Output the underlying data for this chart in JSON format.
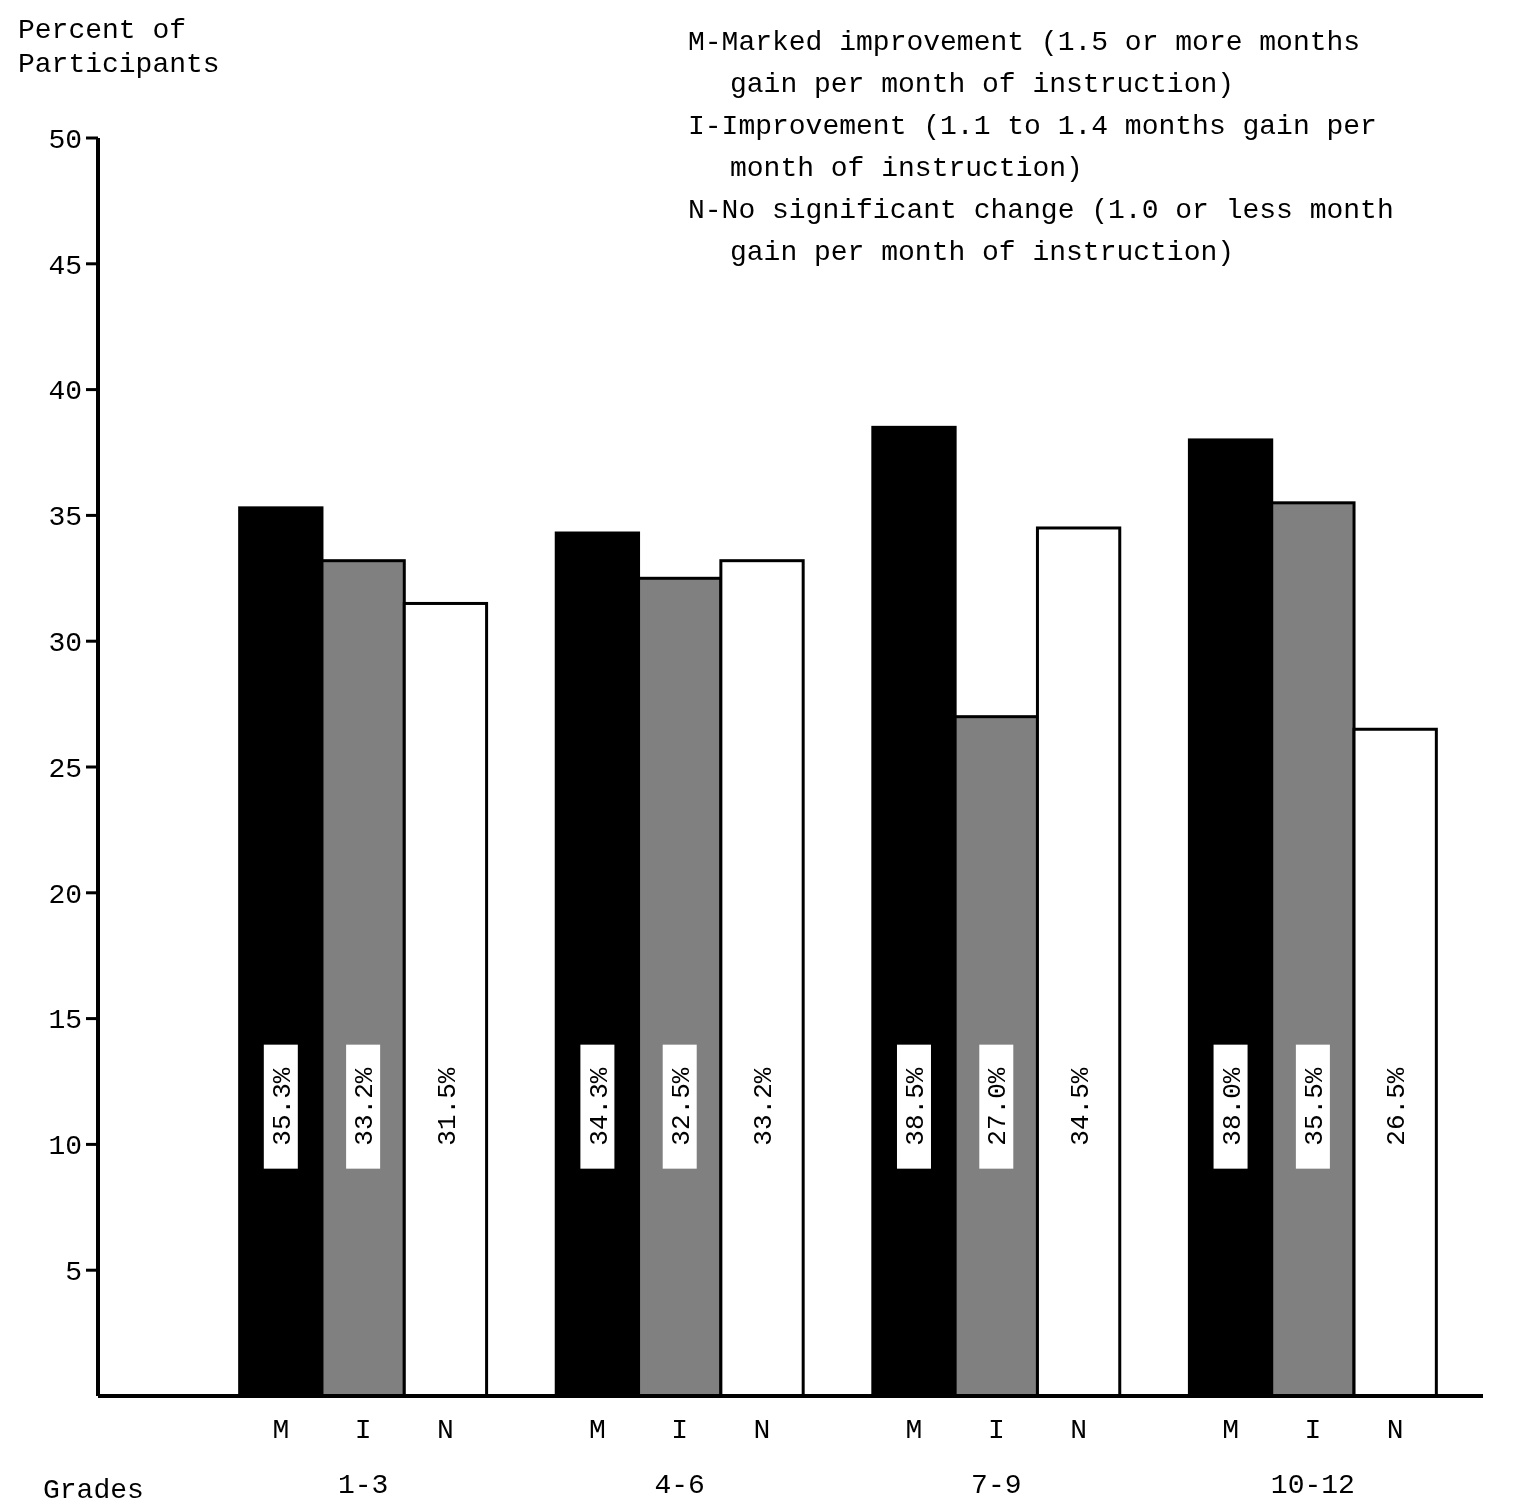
{
  "chart_data": {
    "type": "bar",
    "ylabel": "Percent of Participants",
    "xlabel": "Grades",
    "categories": [
      "1-3",
      "4-6",
      "7-9",
      "10-12"
    ],
    "series": [
      {
        "name": "M",
        "color": "#000000",
        "values": [
          35.3,
          34.3,
          38.5,
          38.0
        ],
        "value_labels": [
          "35.3%",
          "34.3%",
          "38.5%",
          "38.0%"
        ]
      },
      {
        "name": "I",
        "color": "#808080",
        "values": [
          33.2,
          32.5,
          27.0,
          35.5
        ],
        "value_labels": [
          "33.2%",
          "32.5%",
          "27.0%",
          "35.5%"
        ]
      },
      {
        "name": "N",
        "color": "#ffffff",
        "values": [
          31.5,
          33.2,
          34.5,
          26.5
        ],
        "value_labels": [
          "31.5%",
          "33.2%",
          "34.5%",
          "26.5%"
        ]
      }
    ],
    "ylim": [
      0,
      50
    ],
    "yticks": [
      5,
      10,
      15,
      20,
      25,
      30,
      35,
      40,
      45,
      50
    ],
    "annotations": [
      "M-Marked improvement (1.5 or more months gain per month of instruction)",
      "I-Improvement (1.1 to 1.4 months gain per month of instruction)",
      "N-No significant change (1.0 or less month gain per month of instruction)"
    ]
  }
}
